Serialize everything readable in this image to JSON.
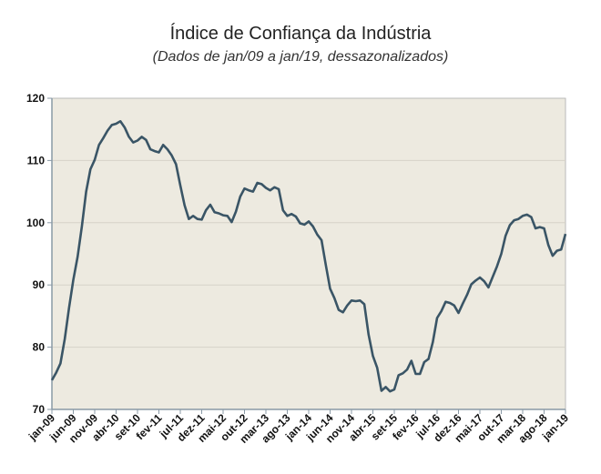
{
  "chart_data": {
    "type": "line",
    "title": "Índice de Confiança da Indústria",
    "subtitle": "(Dados de jan/09 a jan/19, dessazonalizados)",
    "xlabel": "",
    "ylabel": "",
    "ylim": [
      70,
      120
    ],
    "yticks": [
      70,
      80,
      90,
      100,
      110,
      120
    ],
    "grid": true,
    "legend": "none",
    "colors": {
      "line": "#3a5566",
      "plot_bg": "#edeae0",
      "grid": "#d6d2c8",
      "axis": "#8a9aa6"
    },
    "x_tick_labels": [
      "jan-09",
      "jun-09",
      "nov-09",
      "abr-10",
      "set-10",
      "fev-11",
      "jul-11",
      "dez-11",
      "mai-12",
      "out-12",
      "mar-13",
      "ago-13",
      "jan-14",
      "jun-14",
      "nov-14",
      "abr-15",
      "set-15",
      "fev-16",
      "jul-16",
      "dez-16",
      "mai-17",
      "out-17",
      "mar-18",
      "ago-18",
      "jan-19"
    ],
    "x": [
      "jan-09",
      "fev-09",
      "mar-09",
      "abr-09",
      "mai-09",
      "jun-09",
      "jul-09",
      "ago-09",
      "set-09",
      "out-09",
      "nov-09",
      "dez-09",
      "jan-10",
      "fev-10",
      "mar-10",
      "abr-10",
      "mai-10",
      "jun-10",
      "jul-10",
      "ago-10",
      "set-10",
      "out-10",
      "nov-10",
      "dez-10",
      "jan-11",
      "fev-11",
      "mar-11",
      "abr-11",
      "mai-11",
      "jun-11",
      "jul-11",
      "ago-11",
      "set-11",
      "out-11",
      "nov-11",
      "dez-11",
      "jan-12",
      "fev-12",
      "mar-12",
      "abr-12",
      "mai-12",
      "jun-12",
      "jul-12",
      "ago-12",
      "set-12",
      "out-12",
      "nov-12",
      "dez-12",
      "jan-13",
      "fev-13",
      "mar-13",
      "abr-13",
      "mai-13",
      "jun-13",
      "jul-13",
      "ago-13",
      "set-13",
      "out-13",
      "nov-13",
      "dez-13",
      "jan-14",
      "fev-14",
      "mar-14",
      "abr-14",
      "mai-14",
      "jun-14",
      "jul-14",
      "ago-14",
      "set-14",
      "out-14",
      "nov-14",
      "dez-14",
      "jan-15",
      "fev-15",
      "mar-15",
      "abr-15",
      "mai-15",
      "jun-15",
      "jul-15",
      "ago-15",
      "set-15",
      "out-15",
      "nov-15",
      "dez-15",
      "jan-16",
      "fev-16",
      "mar-16",
      "abr-16",
      "mai-16",
      "jun-16",
      "jul-16",
      "ago-16",
      "set-16",
      "out-16",
      "nov-16",
      "dez-16",
      "jan-17",
      "fev-17",
      "mar-17",
      "abr-17",
      "mai-17",
      "jun-17",
      "jul-17",
      "ago-17",
      "set-17",
      "out-17",
      "nov-17",
      "dez-17",
      "jan-18",
      "fev-18",
      "mar-18",
      "abr-18",
      "mai-18",
      "jun-18",
      "jul-18",
      "ago-18",
      "set-18",
      "out-18",
      "nov-18",
      "dez-18",
      "jan-19"
    ],
    "values": [
      74.7,
      75.9,
      77.4,
      81.3,
      86.3,
      90.8,
      94.5,
      99.4,
      105.0,
      108.6,
      110.1,
      112.5,
      113.6,
      114.8,
      115.7,
      115.9,
      116.3,
      115.3,
      113.8,
      112.9,
      113.2,
      113.8,
      113.3,
      111.8,
      111.5,
      111.3,
      112.5,
      111.8,
      110.8,
      109.4,
      106.0,
      102.8,
      100.6,
      101.1,
      100.6,
      100.5,
      102.0,
      102.9,
      101.7,
      101.5,
      101.2,
      101.1,
      100.1,
      101.8,
      104.2,
      105.5,
      105.2,
      105.0,
      106.4,
      106.2,
      105.6,
      105.2,
      105.7,
      105.4,
      102.0,
      101.1,
      101.4,
      101.0,
      99.9,
      99.7,
      100.2,
      99.4,
      98.1,
      97.2,
      93.2,
      89.4,
      87.9,
      86.0,
      85.6,
      86.7,
      87.5,
      87.4,
      87.5,
      86.9,
      82.0,
      78.6,
      76.7,
      73.0,
      73.6,
      72.9,
      73.2,
      75.5,
      75.8,
      76.4,
      77.8,
      75.7,
      75.7,
      77.6,
      78.1,
      80.8,
      84.7,
      85.8,
      87.3,
      87.1,
      86.7,
      85.5,
      87.0,
      88.4,
      90.1,
      90.7,
      91.2,
      90.6,
      89.6,
      91.3,
      93.0,
      95.0,
      97.9,
      99.6,
      100.4,
      100.6,
      101.1,
      101.3,
      100.9,
      99.1,
      99.3,
      99.1,
      96.4,
      94.7,
      95.5,
      95.7,
      98.2
    ]
  }
}
